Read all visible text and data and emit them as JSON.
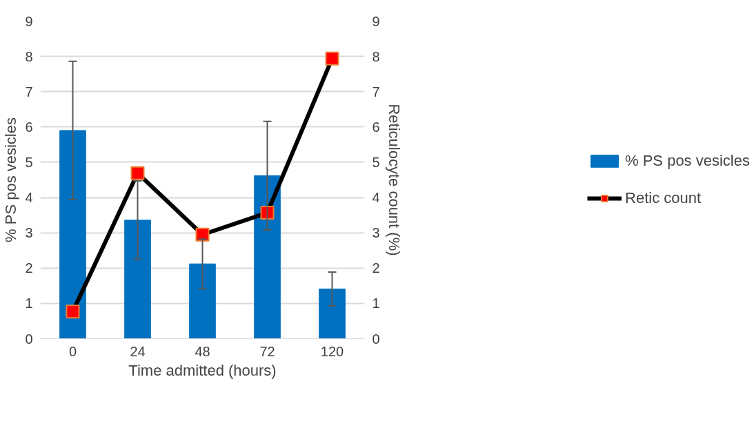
{
  "chart_data": {
    "type": "bar",
    "xlabel": "Time admitted (hours)",
    "ylabel": "% PS pos vesicles",
    "y2label": "Reticulocyte count (%)",
    "categories": [
      "0",
      "24",
      "48",
      "72",
      "120"
    ],
    "series": [
      {
        "name": "% PS pos vesicles",
        "color": "#0070c0",
        "values": [
          5.9,
          3.36,
          2.12,
          4.62,
          1.41
        ],
        "errors": [
          1.96,
          1.11,
          0.7,
          1.54,
          0.48
        ]
      },
      {
        "name": "Retic count",
        "type": "line",
        "color": "#000000",
        "marker": "square",
        "values": [
          0.77,
          4.69,
          2.95,
          3.57,
          7.94
        ]
      }
    ],
    "ylim": [
      0,
      9
    ],
    "yticks": [
      0,
      1,
      2,
      3,
      4,
      5,
      6,
      7,
      8,
      9
    ],
    "y2lim": [
      0,
      9
    ],
    "y2ticks": [
      0,
      1,
      2,
      3,
      4,
      5,
      6,
      7,
      8,
      9
    ],
    "grid": "y",
    "legend": "right"
  }
}
